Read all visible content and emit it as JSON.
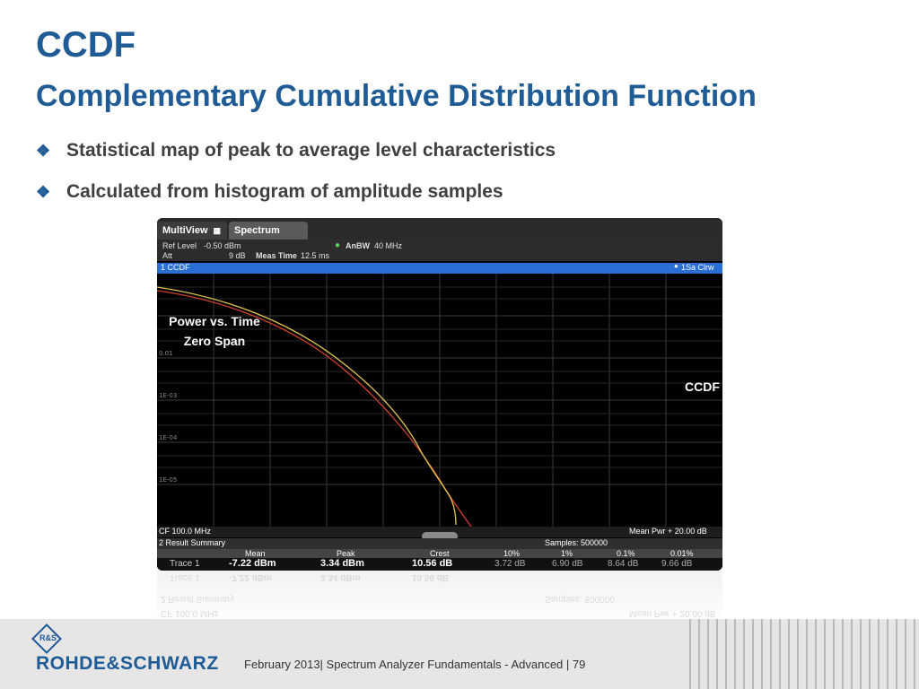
{
  "slide": {
    "title": "CCDF",
    "subtitle": "Complementary Cumulative Distribution Function",
    "bullets": [
      "Statistical map of peak to average level characteristics",
      "Calculated from histogram of amplitude samples"
    ],
    "bullet_icon": "diamond-cluster-icon"
  },
  "analyzer": {
    "tabs": [
      "MultiView",
      "Spectrum"
    ],
    "ref_level_label": "Ref Level",
    "ref_level_value": "-0.50 dBm",
    "att_label": "Att",
    "att_value": "9 dB",
    "meas_time_label": "Meas Time",
    "meas_time_value": "12.5 ms",
    "anbw_label": "AnBW",
    "anbw_value": "40 MHz",
    "trace_label": "1 CCDF",
    "trace_mode": "1Sa Clrw",
    "y_labels": [
      "0.01",
      "1E-03",
      "1E-04",
      "1E-05"
    ],
    "cf": "CF 100.0 MHz",
    "mean_pwr": "Mean Pwr + 20.00 dB",
    "result_title": "2 Result Summary",
    "samples": "Samples: 500000",
    "headers": [
      "Mean",
      "Peak",
      "Crest",
      "10%",
      "1%",
      "0.1%",
      "0.01%"
    ],
    "row_label": "Trace 1",
    "row_values": [
      "-7.22 dBm",
      "3.34 dBm",
      "10.56 dB",
      "3.72 dB",
      "6.90 dB",
      "8.64 dB",
      "9.66 dB"
    ],
    "overlay_left_1": "Power vs. Time",
    "overlay_left_2": "Zero Span",
    "overlay_right": "CCDF",
    "curve_colors": {
      "measured": "#e0c850",
      "reference": "#d04030"
    }
  },
  "footer": {
    "brand": "ROHDE&SCHWARZ",
    "text": "February 2013| Spectrum Analyzer Fundamentals - Advanced  |  79"
  }
}
